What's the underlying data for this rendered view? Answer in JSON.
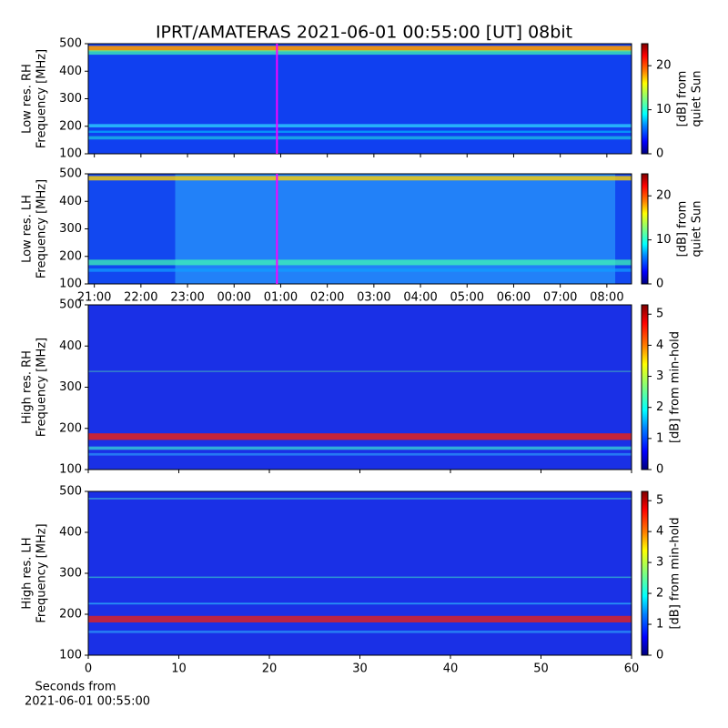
{
  "title": "IPRT/AMATERAS 2021-06-01 00:55:00 [UT]   08bit",
  "xlabel": [
    "Seconds from",
    "2021-06-01 00:55:00"
  ],
  "chart_data": [
    {
      "type": "heatmap",
      "ylabel": [
        "Low res. RH",
        "Frequency [MHz]"
      ],
      "ylim": [
        100,
        500
      ],
      "yticks": [
        100,
        200,
        300,
        400,
        500
      ],
      "xlim": [
        20.87,
        32.53
      ],
      "sharex": 1,
      "marker_x": 24.92,
      "marker_color": "#ff00ff",
      "colorbar": {
        "label": [
          "[dB] from",
          "quiet Sun"
        ],
        "lim": [
          0,
          25
        ],
        "ticks": [
          0,
          10,
          20
        ],
        "colormap": "jet"
      }
    },
    {
      "type": "heatmap",
      "ylabel": [
        "Low res. LH",
        "Frequency [MHz]"
      ],
      "ylim": [
        100,
        500
      ],
      "yticks": [
        100,
        200,
        300,
        400,
        500
      ],
      "xlim": [
        20.87,
        32.53
      ],
      "xticks": [
        {
          "value": 21,
          "label": "21:00"
        },
        {
          "value": 22,
          "label": "22:00"
        },
        {
          "value": 23,
          "label": "23:00"
        },
        {
          "value": 24,
          "label": "00:00"
        },
        {
          "value": 25,
          "label": "01:00"
        },
        {
          "value": 26,
          "label": "02:00"
        },
        {
          "value": 27,
          "label": "03:00"
        },
        {
          "value": 28,
          "label": "04:00"
        },
        {
          "value": 29,
          "label": "05:00"
        },
        {
          "value": 30,
          "label": "06:00"
        },
        {
          "value": 31,
          "label": "07:00"
        },
        {
          "value": 32,
          "label": "08:00"
        }
      ],
      "marker_x": 24.92,
      "marker_color": "#ff00ff",
      "colorbar": {
        "label": [
          "[dB] from",
          "quiet Sun"
        ],
        "lim": [
          0,
          25
        ],
        "ticks": [
          0,
          10,
          20
        ],
        "colormap": "jet"
      }
    },
    {
      "type": "heatmap",
      "ylabel": [
        "High res. RH",
        "Frequency [MHz]"
      ],
      "ylim": [
        100,
        500
      ],
      "yticks": [
        100,
        200,
        300,
        400,
        500
      ],
      "xlim": [
        0,
        60
      ],
      "sharex": 3,
      "colorbar": {
        "label": [
          "[dB] from min-hold"
        ],
        "lim": [
          0,
          5.3
        ],
        "ticks": [
          0,
          1,
          2,
          3,
          4,
          5
        ],
        "colormap": "jet"
      }
    },
    {
      "type": "heatmap",
      "ylabel": [
        "High res. LH",
        "Frequency [MHz]"
      ],
      "ylim": [
        100,
        500
      ],
      "yticks": [
        100,
        200,
        300,
        400,
        500
      ],
      "xlim": [
        0,
        60
      ],
      "xticks": [
        0,
        10,
        20,
        30,
        40,
        50,
        60
      ],
      "colorbar": {
        "label": [
          "[dB] from min-hold"
        ],
        "lim": [
          0,
          5.3
        ],
        "ticks": [
          0,
          1,
          2,
          3,
          4,
          5
        ],
        "colormap": "jet"
      }
    }
  ]
}
